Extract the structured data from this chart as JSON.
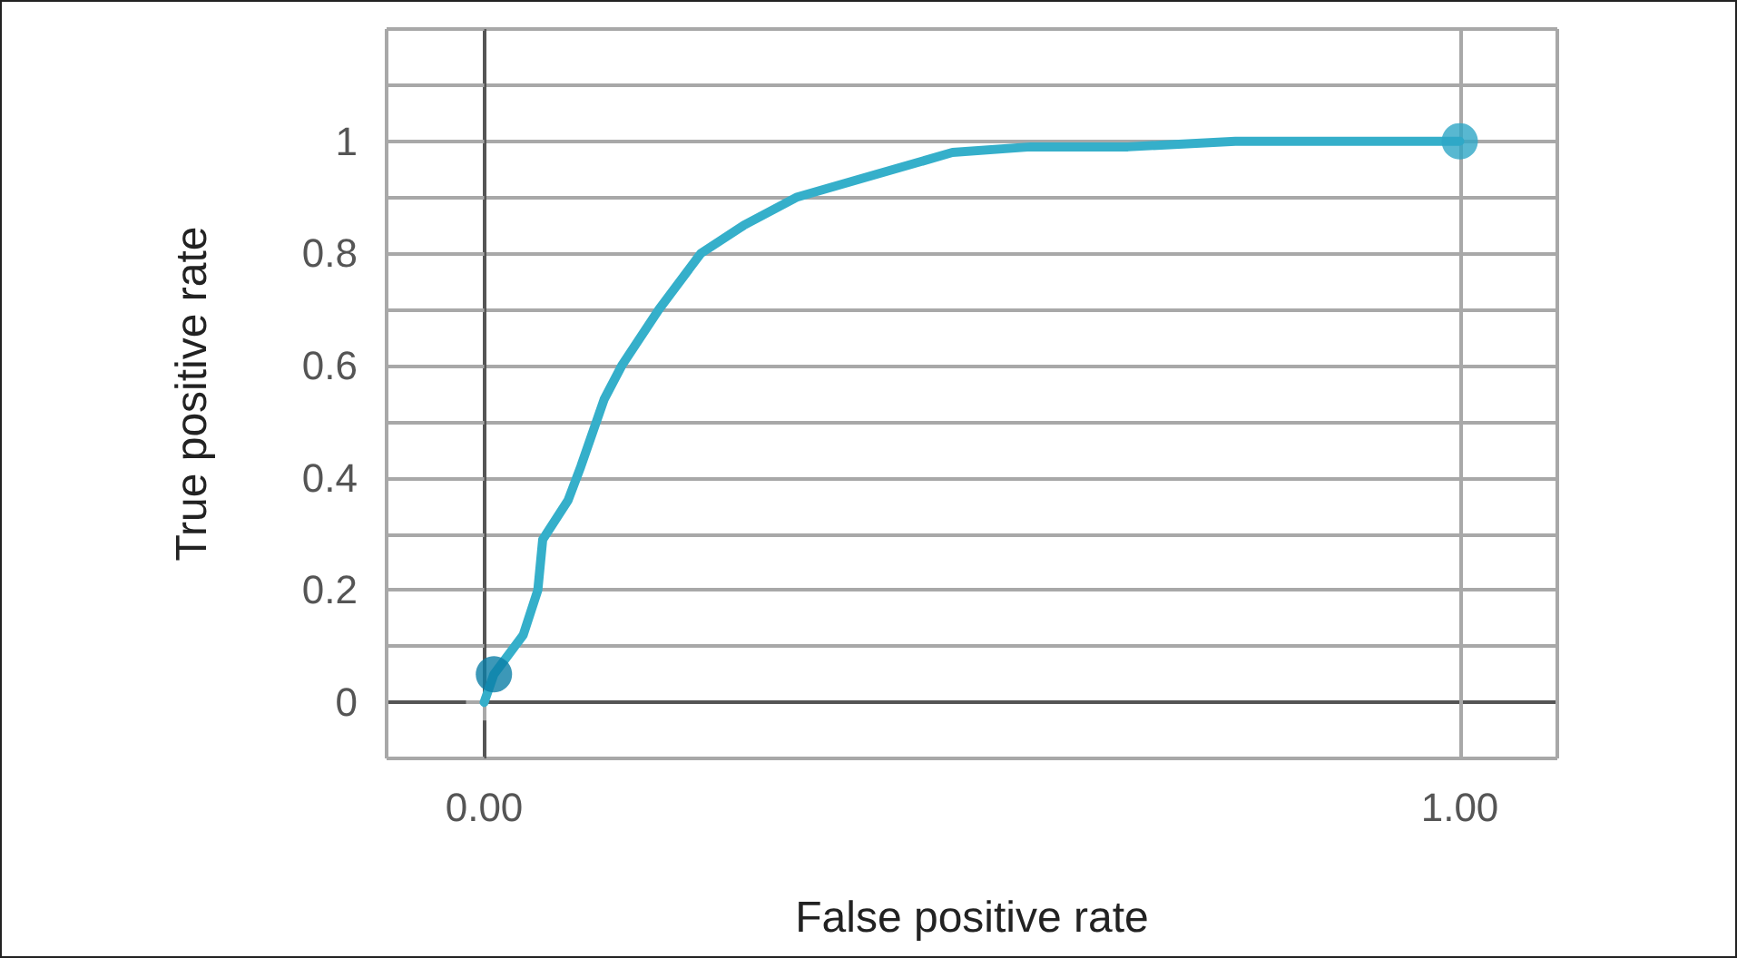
{
  "chart_data": {
    "type": "line",
    "xlabel": "False positive rate",
    "ylabel": "True positive rate",
    "xlim": [
      -0.1,
      1.1
    ],
    "ylim": [
      -0.1,
      1.2
    ],
    "xticks": [
      {
        "value": -0.1,
        "label": null
      },
      {
        "value": 0,
        "label": "0.00"
      },
      {
        "value": 1,
        "label": "1.00"
      },
      {
        "value": 1.1,
        "label": null
      }
    ],
    "yticks": [
      {
        "value": -0.1,
        "label": null
      },
      0,
      {
        "value": 0.1,
        "label": null
      },
      0.2,
      {
        "value": 0.3,
        "label": null
      },
      0.4,
      {
        "value": 0.5,
        "label": null
      },
      0.6,
      {
        "value": 0.7,
        "label": null
      },
      0.8,
      {
        "value": 0.9,
        "label": null
      },
      1,
      {
        "value": 1.1,
        "label": null
      },
      {
        "value": 1.2,
        "label": null
      }
    ],
    "grid": true,
    "series": [
      {
        "color": "#35afca",
        "marker": "none",
        "line_style": "solid",
        "x": [
          0,
          0.01,
          0.04,
          0.055,
          0.06,
          0.086,
          0.099,
          0.123,
          0.141,
          0.179,
          0.222,
          0.266,
          0.32,
          0.4,
          0.48,
          0.56,
          0.66,
          0.77,
          1
        ],
        "values": [
          0,
          0.05,
          0.12,
          0.2,
          0.29,
          0.36,
          0.42,
          0.54,
          0.6,
          0.7,
          0.8,
          0.85,
          0.9,
          0.94,
          0.98,
          0.99,
          0.99,
          1,
          1
        ]
      },
      {
        "type": "scatter",
        "marker": "circle",
        "colors": [
          "#0b7ea6",
          "#2ea6c6"
        ],
        "x": [
          0.01,
          1
        ],
        "values": [
          0.05,
          1
        ]
      }
    ]
  }
}
